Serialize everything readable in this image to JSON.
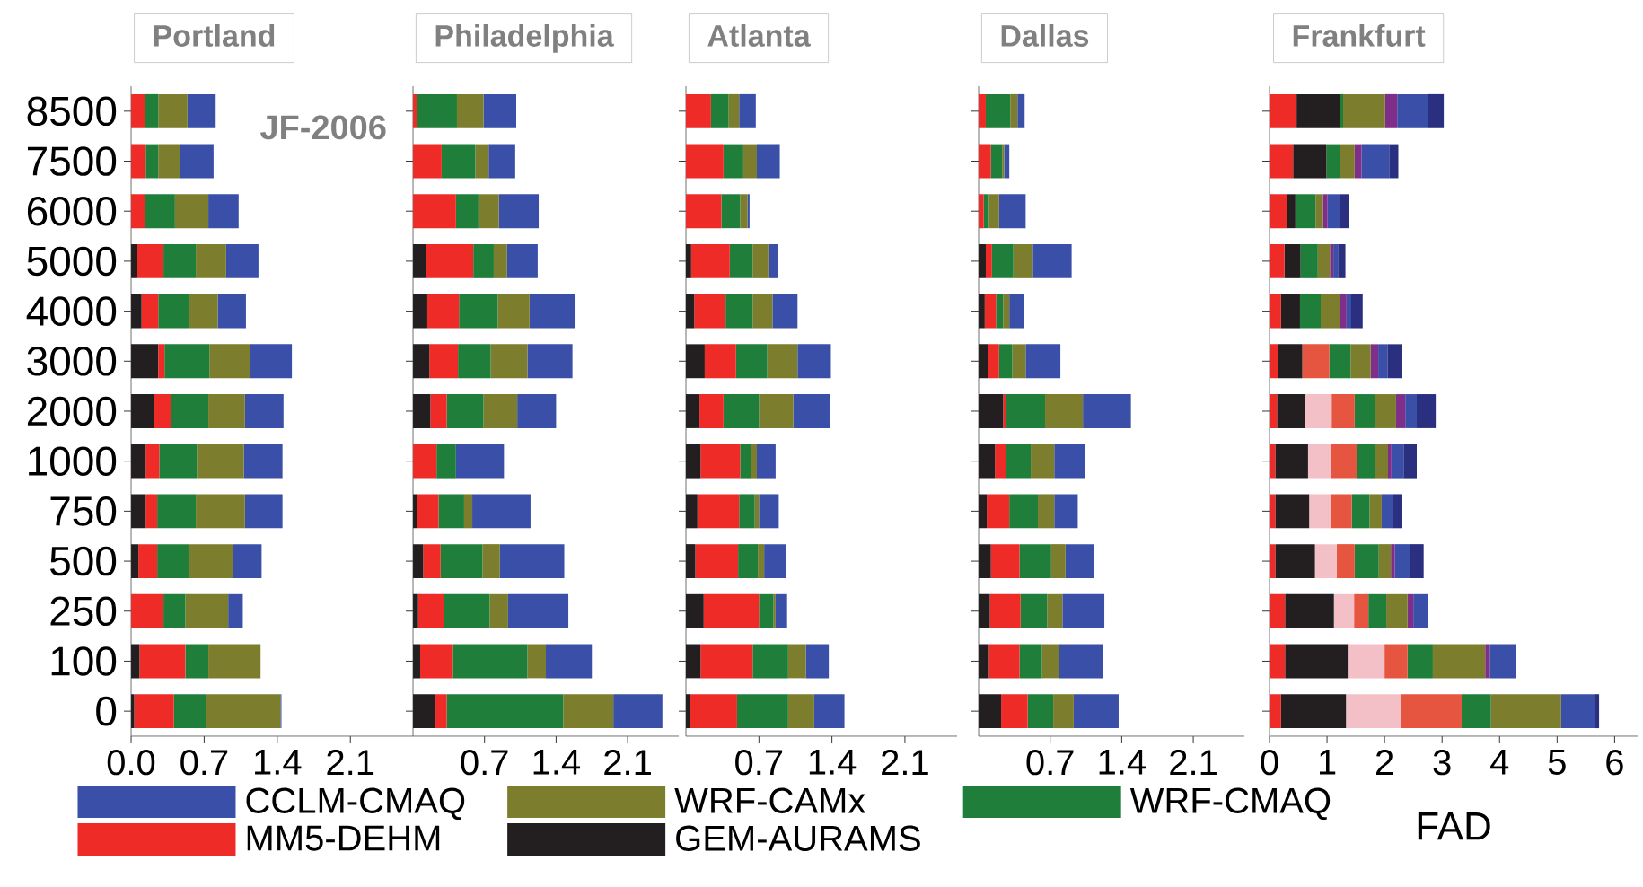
{
  "chart_data": [
    {
      "type": "bar",
      "orientation": "horizontal",
      "stacked": true,
      "title": "Portland",
      "annotations": [
        "JF-2006"
      ],
      "legend": "bottom",
      "categories": [
        "8500",
        "7500",
        "6000",
        "5000",
        "4000",
        "3000",
        "2000",
        "1000",
        "750",
        "500",
        "250",
        "100",
        "0"
      ],
      "xlim": [
        0,
        2.7
      ],
      "xticks": [
        {
          "value": 0,
          "label": "0.0"
        },
        0.7,
        1.4,
        2.1
      ],
      "series": [
        {
          "name": "GEM-AURAMS",
          "color": "#231f20",
          "values": [
            0,
            0,
            0,
            0.06,
            0.1,
            0.26,
            0.22,
            0.14,
            0.14,
            0.07,
            0,
            0.08,
            0.03
          ]
        },
        {
          "name": "MM5-DEHM",
          "color": "#ee2b27",
          "values": [
            0.13,
            0.14,
            0.13,
            0.25,
            0.16,
            0.06,
            0.16,
            0.13,
            0.11,
            0.18,
            0.31,
            0.44,
            0.38
          ]
        },
        {
          "name": "WRF-CMAQ",
          "color": "#1f7f3a",
          "values": [
            0.13,
            0.12,
            0.29,
            0.31,
            0.29,
            0.43,
            0.36,
            0.36,
            0.37,
            0.3,
            0.21,
            0.22,
            0.31
          ]
        },
        {
          "name": "WRF-CAMx",
          "color": "#7d7d2e",
          "values": [
            0.28,
            0.21,
            0.32,
            0.29,
            0.28,
            0.39,
            0.35,
            0.45,
            0.47,
            0.43,
            0.41,
            0.5,
            0.71
          ]
        },
        {
          "name": "CCLM-CMAQ",
          "color": "#3a4fa8",
          "values": [
            0.27,
            0.32,
            0.29,
            0.31,
            0.27,
            0.4,
            0.37,
            0.37,
            0.36,
            0.27,
            0.14,
            0,
            0.01
          ]
        }
      ]
    },
    {
      "type": "bar",
      "orientation": "horizontal",
      "stacked": true,
      "title": "Philadelphia",
      "tick_labels": "x",
      "categories": [
        "8500",
        "7500",
        "6000",
        "5000",
        "4000",
        "3000",
        "2000",
        "1000",
        "750",
        "500",
        "250",
        "100",
        "0"
      ],
      "xlim": [
        0,
        2.6
      ],
      "xticks": [
        0.7,
        1.4,
        2.1
      ],
      "series": [
        {
          "color": "#231f20",
          "values": [
            0,
            0,
            0,
            0.13,
            0.14,
            0.16,
            0.17,
            0,
            0.04,
            0.1,
            0.05,
            0.07,
            0.22
          ]
        },
        {
          "color": "#ee2b27",
          "values": [
            0.04,
            0.28,
            0.42,
            0.46,
            0.31,
            0.28,
            0.16,
            0.23,
            0.21,
            0.17,
            0.25,
            0.32,
            0.11
          ]
        },
        {
          "color": "#1f7f3a",
          "values": [
            0.39,
            0.33,
            0.22,
            0.2,
            0.38,
            0.32,
            0.36,
            0.19,
            0.25,
            0.41,
            0.45,
            0.73,
            1.14
          ]
        },
        {
          "color": "#7d7d2e",
          "values": [
            0.26,
            0.13,
            0.2,
            0.13,
            0.31,
            0.36,
            0.33,
            0,
            0.08,
            0.17,
            0.18,
            0.18,
            0.49
          ]
        },
        {
          "color": "#3a4fa8",
          "values": [
            0.32,
            0.26,
            0.39,
            0.3,
            0.45,
            0.44,
            0.38,
            0.47,
            0.57,
            0.63,
            0.59,
            0.45,
            0.48
          ]
        }
      ]
    },
    {
      "type": "bar",
      "orientation": "horizontal",
      "stacked": true,
      "title": "Atlanta",
      "tick_labels": "x",
      "categories": [
        "8500",
        "7500",
        "6000",
        "5000",
        "4000",
        "3000",
        "2000",
        "1000",
        "750",
        "500",
        "250",
        "100",
        "0"
      ],
      "xlim": [
        0,
        2.6
      ],
      "xticks": [
        0.7,
        1.4,
        2.1
      ],
      "series": [
        {
          "color": "#231f20",
          "values": [
            0,
            0,
            0,
            0.05,
            0.08,
            0.18,
            0.13,
            0.14,
            0.11,
            0.09,
            0.17,
            0.14,
            0.04
          ]
        },
        {
          "color": "#ee2b27",
          "values": [
            0.24,
            0.36,
            0.34,
            0.37,
            0.3,
            0.3,
            0.23,
            0.38,
            0.4,
            0.41,
            0.53,
            0.5,
            0.45
          ]
        },
        {
          "color": "#1f7f3a",
          "values": [
            0.17,
            0.19,
            0.18,
            0.22,
            0.26,
            0.3,
            0.34,
            0.1,
            0.15,
            0.19,
            0.14,
            0.34,
            0.49
          ]
        },
        {
          "color": "#7d7d2e",
          "values": [
            0.1,
            0.13,
            0.07,
            0.15,
            0.19,
            0.29,
            0.33,
            0.06,
            0.04,
            0.06,
            0.02,
            0.17,
            0.25
          ]
        },
        {
          "color": "#3a4fa8",
          "values": [
            0.16,
            0.22,
            0.02,
            0.09,
            0.24,
            0.32,
            0.35,
            0.18,
            0.19,
            0.21,
            0.11,
            0.22,
            0.29
          ]
        }
      ]
    },
    {
      "type": "bar",
      "orientation": "horizontal",
      "stacked": true,
      "title": "Dallas",
      "tick_labels": "x",
      "categories": [
        "8500",
        "7500",
        "6000",
        "5000",
        "4000",
        "3000",
        "2000",
        "1000",
        "750",
        "500",
        "250",
        "100",
        "0"
      ],
      "xlim": [
        0,
        2.6
      ],
      "xticks": [
        0.7,
        1.4,
        2.1
      ],
      "series": [
        {
          "color": "#231f20",
          "values": [
            0,
            0,
            0,
            0.07,
            0.06,
            0.09,
            0.24,
            0.16,
            0.08,
            0.12,
            0.11,
            0.1,
            0.22
          ]
        },
        {
          "color": "#ee2b27",
          "values": [
            0.07,
            0.12,
            0.05,
            0.06,
            0.11,
            0.11,
            0.03,
            0.11,
            0.22,
            0.28,
            0.3,
            0.3,
            0.26
          ]
        },
        {
          "color": "#1f7f3a",
          "values": [
            0.24,
            0.11,
            0.05,
            0.21,
            0.07,
            0.13,
            0.38,
            0.24,
            0.28,
            0.31,
            0.26,
            0.22,
            0.25
          ]
        },
        {
          "color": "#7d7d2e",
          "values": [
            0.07,
            0.02,
            0.1,
            0.19,
            0.06,
            0.13,
            0.37,
            0.23,
            0.16,
            0.14,
            0.15,
            0.17,
            0.2
          ]
        },
        {
          "color": "#3a4fa8",
          "values": [
            0.07,
            0.05,
            0.26,
            0.38,
            0.14,
            0.34,
            0.47,
            0.3,
            0.23,
            0.28,
            0.41,
            0.43,
            0.44
          ]
        }
      ]
    },
    {
      "type": "bar",
      "orientation": "horizontal",
      "stacked": true,
      "title": "Frankfurt",
      "tick_labels": "x",
      "xlabel": "FAD",
      "categories": [
        "8500",
        "7500",
        "6000",
        "5000",
        "4000",
        "3000",
        "2000",
        "1000",
        "750",
        "500",
        "250",
        "100",
        "0"
      ],
      "xlim": [
        0,
        6.4
      ],
      "xticks": [
        0,
        1,
        2,
        3,
        4,
        5,
        6
      ],
      "series": [
        {
          "color": "#ee2b27",
          "values": [
            0.47,
            0.41,
            0.31,
            0.26,
            0.2,
            0.14,
            0.13,
            0.1,
            0.1,
            0.1,
            0.27,
            0.27,
            0.2
          ]
        },
        {
          "color": "#231f20",
          "values": [
            0.76,
            0.58,
            0.14,
            0.28,
            0.33,
            0.43,
            0.49,
            0.57,
            0.59,
            0.69,
            0.85,
            1.09,
            1.13
          ]
        },
        {
          "color": "#f4c0c8",
          "values": [
            0,
            0,
            0,
            0,
            0,
            0,
            0.46,
            0.39,
            0.37,
            0.38,
            0.35,
            0.64,
            0.96
          ]
        },
        {
          "color": "#e5553f",
          "values": [
            0,
            0,
            0,
            0,
            0,
            0.47,
            0.4,
            0.46,
            0.37,
            0.31,
            0.25,
            0.4,
            1.05
          ]
        },
        {
          "color": "#1f7f3a",
          "values": [
            0.05,
            0.23,
            0.35,
            0.3,
            0.36,
            0.37,
            0.35,
            0.32,
            0.31,
            0.42,
            0.31,
            0.44,
            0.51
          ]
        },
        {
          "color": "#7d7d2e",
          "values": [
            0.73,
            0.26,
            0.13,
            0.21,
            0.34,
            0.35,
            0.37,
            0.22,
            0.21,
            0.21,
            0.37,
            0.91,
            1.22
          ]
        },
        {
          "color": "#7f2f8a",
          "values": [
            0.21,
            0.12,
            0.08,
            0.06,
            0.11,
            0.13,
            0.16,
            0.06,
            0,
            0.07,
            0.1,
            0.08,
            0
          ]
        },
        {
          "color": "#3a4fa8",
          "values": [
            0.53,
            0.48,
            0.22,
            0.08,
            0.08,
            0.16,
            0.2,
            0.21,
            0.19,
            0.27,
            0.26,
            0.45,
            0.59
          ]
        },
        {
          "color": "#2b2f7f",
          "values": [
            0.28,
            0.16,
            0.15,
            0.13,
            0.2,
            0.26,
            0.33,
            0.23,
            0.17,
            0.23,
            0,
            0,
            0.07
          ]
        }
      ]
    }
  ]
}
